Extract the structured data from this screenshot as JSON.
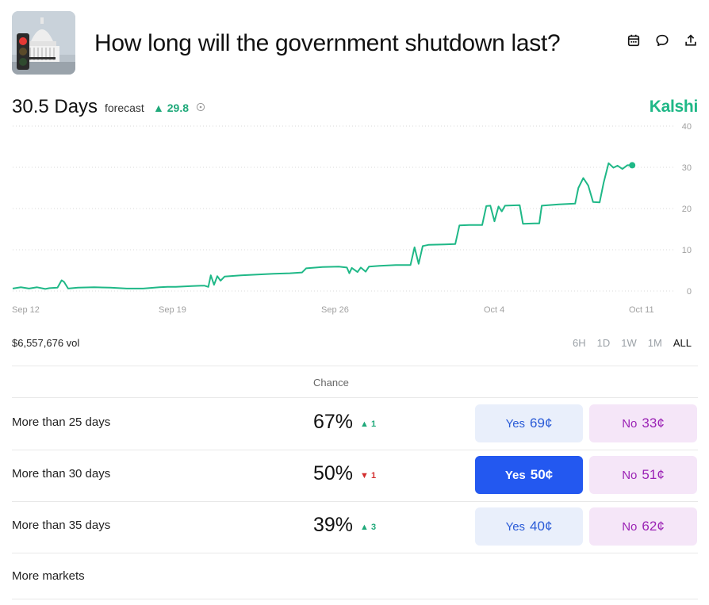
{
  "header": {
    "title": "How long will the government shutdown last?",
    "icons": [
      "calendar-icon",
      "comment-icon",
      "share-icon"
    ]
  },
  "forecast": {
    "value": "30.5 Days",
    "label": "forecast",
    "delta": "▲ 29.8",
    "brand": "Kalshi"
  },
  "chart_data": {
    "type": "line",
    "x_tick_labels": [
      "Sep 12",
      "Sep 19",
      "Sep 26",
      "Oct 4",
      "Oct 11"
    ],
    "y_tick_labels": [
      "40",
      "30",
      "20",
      "10",
      "0"
    ],
    "ylim": [
      0,
      40
    ],
    "grid": true,
    "color": "#1fb887",
    "series": [
      {
        "values": [
          [
            0,
            0.6
          ],
          [
            1,
            0.9
          ],
          [
            2,
            0.6
          ],
          [
            3,
            0.9
          ],
          [
            4,
            0.5
          ],
          [
            4.5,
            0.7
          ],
          [
            5.5,
            0.8
          ],
          [
            6,
            2.6
          ],
          [
            6.3,
            2.2
          ],
          [
            6.8,
            0.6
          ],
          [
            8,
            0.8
          ],
          [
            10,
            0.9
          ],
          [
            12,
            0.8
          ],
          [
            14,
            0.6
          ],
          [
            16,
            0.6
          ],
          [
            18,
            0.9
          ],
          [
            19,
            1.0
          ],
          [
            20,
            1.0
          ],
          [
            22,
            1.2
          ],
          [
            23.5,
            1.3
          ],
          [
            24,
            1.0
          ],
          [
            24.3,
            3.8
          ],
          [
            24.7,
            1.5
          ],
          [
            25.1,
            3.6
          ],
          [
            25.5,
            2.5
          ],
          [
            26,
            3.5
          ],
          [
            28,
            3.8
          ],
          [
            30,
            4.0
          ],
          [
            32,
            4.2
          ],
          [
            34,
            4.3
          ],
          [
            35.5,
            4.5
          ],
          [
            36,
            5.5
          ],
          [
            38,
            5.8
          ],
          [
            40,
            5.9
          ],
          [
            41,
            5.7
          ],
          [
            41.3,
            4.3
          ],
          [
            41.6,
            5.6
          ],
          [
            42.3,
            4.6
          ],
          [
            42.7,
            5.7
          ],
          [
            43.3,
            4.7
          ],
          [
            43.7,
            5.9
          ],
          [
            45,
            6.1
          ],
          [
            47,
            6.3
          ],
          [
            48.8,
            6.3
          ],
          [
            49.3,
            10.6
          ],
          [
            49.8,
            6.6
          ],
          [
            50.3,
            10.9
          ],
          [
            51,
            11.2
          ],
          [
            53,
            11.3
          ],
          [
            54.3,
            11.4
          ],
          [
            54.8,
            15.9
          ],
          [
            56,
            16.0
          ],
          [
            57.6,
            16.0
          ],
          [
            58.1,
            20.6
          ],
          [
            58.6,
            20.7
          ],
          [
            59.1,
            16.9
          ],
          [
            59.6,
            20.5
          ],
          [
            60,
            19.3
          ],
          [
            60.4,
            20.7
          ],
          [
            62.2,
            20.8
          ],
          [
            62.6,
            16.3
          ],
          [
            64,
            16.4
          ],
          [
            64.6,
            16.4
          ],
          [
            64.9,
            20.7
          ],
          [
            67,
            21.0
          ],
          [
            69,
            21.2
          ],
          [
            69.4,
            25.0
          ],
          [
            70,
            27.4
          ],
          [
            70.6,
            25.6
          ],
          [
            71.2,
            21.6
          ],
          [
            72,
            21.5
          ],
          [
            72.5,
            26.3
          ],
          [
            73.1,
            31.0
          ],
          [
            73.7,
            29.9
          ],
          [
            74.2,
            30.4
          ],
          [
            74.8,
            29.6
          ],
          [
            75.4,
            30.5
          ],
          [
            76,
            30.5
          ]
        ]
      }
    ]
  },
  "volume": "$6,557,676 vol",
  "ranges": {
    "items": [
      "6H",
      "1D",
      "1W",
      "1M",
      "ALL"
    ],
    "active": "ALL"
  },
  "table": {
    "chance_header": "Chance",
    "rows": [
      {
        "label": "More than 25 days",
        "chance": "67%",
        "delta": "▲ 1",
        "direction": "up",
        "yes_label": "Yes",
        "yes_price": "69¢",
        "no_label": "No",
        "no_price": "33¢",
        "selected": false
      },
      {
        "label": "More than 30 days",
        "chance": "50%",
        "delta": "▼ 1",
        "direction": "down",
        "yes_label": "Yes",
        "yes_price": "50¢",
        "no_label": "No",
        "no_price": "51¢",
        "selected": true
      },
      {
        "label": "More than 35 days",
        "chance": "39%",
        "delta": "▲ 3",
        "direction": "up",
        "yes_label": "Yes",
        "yes_price": "40¢",
        "no_label": "No",
        "no_price": "62¢",
        "selected": false
      }
    ]
  },
  "more_markets": "More markets"
}
